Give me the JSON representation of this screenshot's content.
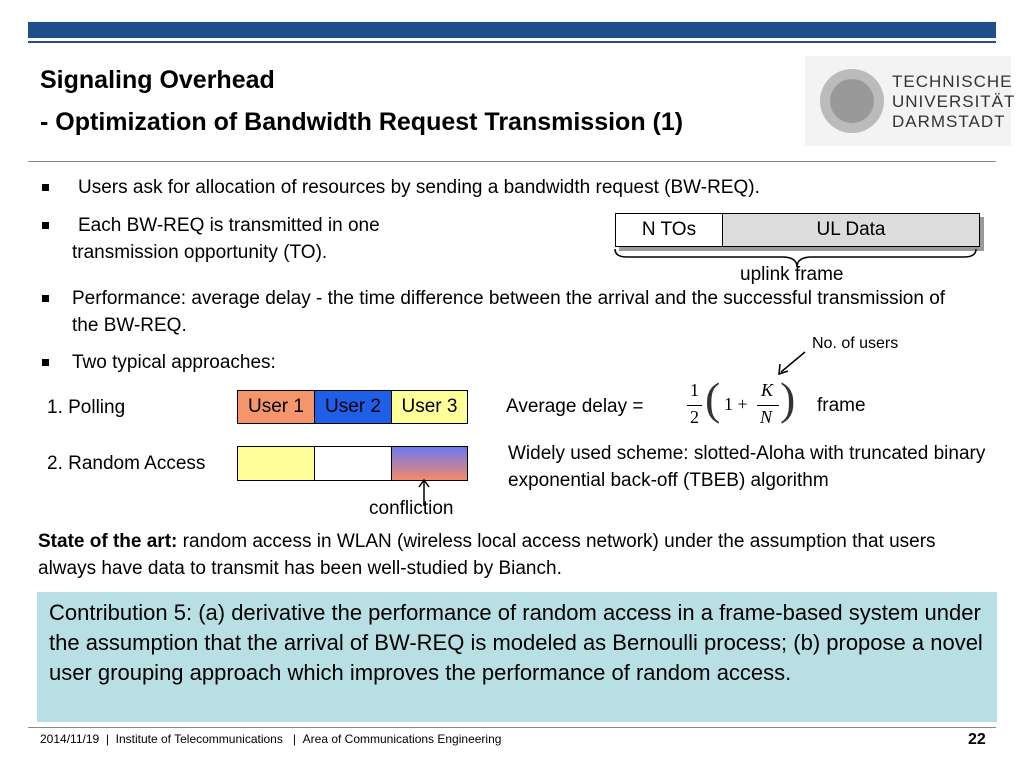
{
  "header": {
    "title": "Signaling Overhead",
    "subtitle": "- Optimization of Bandwidth Request Transmission (1)",
    "logo": [
      "TECHNISCHE",
      "UNIVERSITÄT",
      "DARMSTADT"
    ]
  },
  "bullets": [
    "Users ask for allocation of resources by sending a bandwidth request (BW-REQ).",
    "Each BW-REQ is transmitted in one transmission opportunity (TO).",
    "Performance: average delay - the time difference between the arrival and the successful transmission of the BW-REQ.",
    "Two typical approaches:"
  ],
  "frame": {
    "tos": "N TOs",
    "data": "UL Data",
    "label": "uplink frame"
  },
  "approaches": [
    {
      "label": "1. Polling",
      "slots": [
        "User 1",
        "User 2",
        "User 3"
      ]
    },
    {
      "label": "2. Random Access"
    }
  ],
  "conflict": "confliction",
  "formula": {
    "prefix": "Average delay =",
    "half_num": "1",
    "half_den": "2",
    "one_plus": "1 +",
    "k": "K",
    "n": "N",
    "suffix": "frame",
    "note": "No. of users"
  },
  "random_note": "Widely used scheme: slotted-Aloha with truncated binary exponential back-off (TBEB) algorithm",
  "state": {
    "lead": "State of the art:",
    "text": "random access in WLAN (wireless local access network) under the assumption that users always have data to transmit has been well-studied by Bianch."
  },
  "contribution": "Contribution 5: (a) derivative the performance of random access in a frame-based system under the assumption that the arrival of BW-REQ is modeled as Bernoulli process; (b) propose a novel user grouping approach which improves the performance of random access.",
  "footer": {
    "date": "2014/11/19",
    "separator": "|",
    "institute": "Institute of Telecommunications",
    "area": "Area of Communications Engineering",
    "page": "22"
  }
}
